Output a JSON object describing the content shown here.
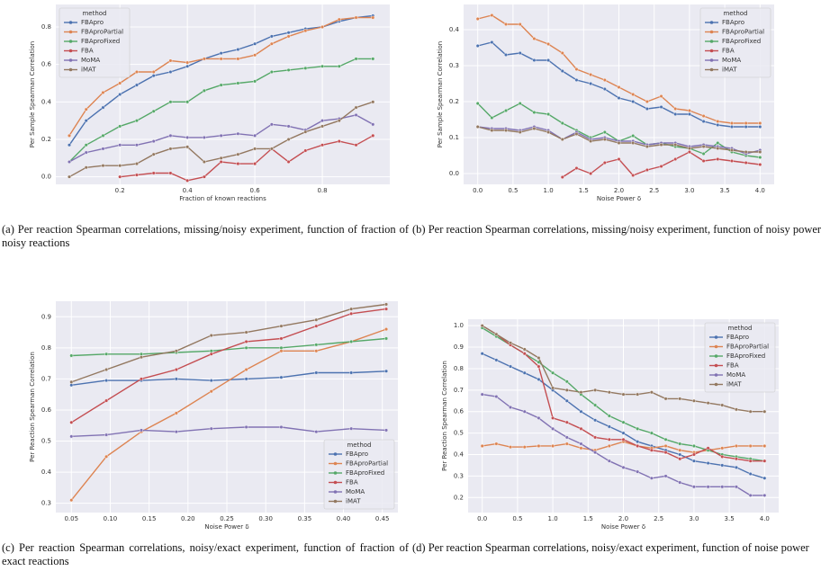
{
  "chart_data": [
    {
      "type": "line",
      "caption": "(a) Per reaction Spearman correlations, missing/noisy experiment, function of fraction of noisy reactions",
      "xlabel": "Fraction of known reactions",
      "ylabel": "Per Sample Spearman Correlation",
      "legend": "upper left",
      "legend_title": "method",
      "grid": true,
      "xlim": [
        0.01,
        1.0
      ],
      "ylim": [
        -0.04,
        0.92
      ],
      "xticks": [
        0.2,
        0.4,
        0.6,
        0.8
      ],
      "yticks": [
        {
          "value": 0,
          "label": "0.0"
        },
        0.2,
        0.4,
        0.6,
        0.8
      ],
      "x": [
        0.05,
        0.1,
        0.15,
        0.2,
        0.25,
        0.3,
        0.35,
        0.4,
        0.45,
        0.5,
        0.55,
        0.6,
        0.65,
        0.7,
        0.75,
        0.8,
        0.85,
        0.9,
        0.95
      ],
      "series": [
        {
          "name": "FBApro",
          "color": "#4c72b0",
          "values": [
            0.17,
            0.3,
            0.37,
            0.44,
            0.49,
            0.54,
            0.56,
            0.59,
            0.63,
            0.66,
            0.68,
            0.71,
            0.75,
            0.77,
            0.79,
            0.8,
            0.83,
            0.85,
            0.86
          ]
        },
        {
          "name": "FBAproPartial",
          "color": "#dd8452",
          "values": [
            0.22,
            0.36,
            0.45,
            0.5,
            0.56,
            0.56,
            0.62,
            0.61,
            0.63,
            0.63,
            0.63,
            0.65,
            0.71,
            0.75,
            0.78,
            0.8,
            0.84,
            0.85,
            0.85
          ]
        },
        {
          "name": "FBAproFixed",
          "color": "#55a868",
          "values": [
            0.08,
            0.17,
            0.22,
            0.27,
            0.3,
            0.35,
            0.4,
            0.4,
            0.46,
            0.49,
            0.5,
            0.51,
            0.56,
            0.57,
            0.58,
            0.59,
            0.59,
            0.63,
            0.63
          ]
        },
        {
          "name": "FBA",
          "color": "#c44e52",
          "values": [
            null,
            null,
            null,
            0.0,
            0.01,
            0.02,
            0.02,
            -0.02,
            0.0,
            0.08,
            0.07,
            0.07,
            0.15,
            0.08,
            0.14,
            0.17,
            0.19,
            0.17,
            0.22
          ]
        },
        {
          "name": "MoMA",
          "color": "#8172b3",
          "values": [
            0.08,
            0.13,
            0.15,
            0.17,
            0.17,
            0.19,
            0.22,
            0.21,
            0.21,
            0.22,
            0.23,
            0.22,
            0.28,
            0.27,
            0.25,
            0.3,
            0.31,
            0.33,
            0.28
          ]
        },
        {
          "name": "iMAT",
          "color": "#937860",
          "values": [
            0.0,
            0.05,
            0.06,
            0.06,
            0.07,
            0.12,
            0.15,
            0.16,
            0.08,
            0.1,
            0.12,
            0.15,
            0.15,
            0.2,
            0.24,
            0.27,
            0.3,
            0.37,
            0.4
          ]
        }
      ]
    },
    {
      "type": "line",
      "caption": "(b) Per reaction Spearman correlations, missing/noisy experiment, function of noisy power",
      "xlabel": "Noise Power δ",
      "ylabel": "Per Sample Spearman Correlation",
      "legend": "upper right",
      "legend_title": "method",
      "grid": true,
      "xlim": [
        -0.2,
        4.2
      ],
      "ylim": [
        -0.03,
        0.47
      ],
      "xticks": [
        {
          "value": 0,
          "label": "0.0"
        },
        0.5,
        {
          "value": 1,
          "label": "1.0"
        },
        1.5,
        {
          "value": 2,
          "label": "2.0"
        },
        2.5,
        {
          "value": 3,
          "label": "3.0"
        },
        3.5,
        {
          "value": 4,
          "label": "4.0"
        }
      ],
      "yticks": [
        {
          "value": 0,
          "label": "0.0"
        },
        0.1,
        0.2,
        0.3,
        0.4
      ],
      "x": [
        0,
        0.2,
        0.4,
        0.6,
        0.8,
        1.0,
        1.2,
        1.4,
        1.6,
        1.8,
        2.0,
        2.2,
        2.4,
        2.6,
        2.8,
        3.0,
        3.2,
        3.4,
        3.6,
        3.8,
        4.0
      ],
      "series": [
        {
          "name": "FBApro",
          "color": "#4c72b0",
          "values": [
            0.355,
            0.365,
            0.33,
            0.335,
            0.315,
            0.315,
            0.285,
            0.26,
            0.25,
            0.235,
            0.21,
            0.2,
            0.18,
            0.185,
            0.165,
            0.165,
            0.145,
            0.135,
            0.13,
            0.13,
            0.13
          ]
        },
        {
          "name": "FBAproPartial",
          "color": "#dd8452",
          "values": [
            0.43,
            0.44,
            0.415,
            0.415,
            0.375,
            0.36,
            0.335,
            0.29,
            0.275,
            0.26,
            0.24,
            0.22,
            0.2,
            0.215,
            0.18,
            0.175,
            0.16,
            0.145,
            0.14,
            0.14,
            0.14
          ]
        },
        {
          "name": "FBAproFixed",
          "color": "#55a868",
          "values": [
            0.195,
            0.155,
            0.175,
            0.195,
            0.17,
            0.165,
            0.14,
            0.12,
            0.1,
            0.115,
            0.09,
            0.105,
            0.08,
            0.085,
            0.075,
            0.07,
            0.055,
            0.085,
            0.06,
            0.05,
            0.045
          ]
        },
        {
          "name": "FBA",
          "color": "#c44e52",
          "values": [
            null,
            null,
            null,
            null,
            null,
            null,
            -0.01,
            0.015,
            0.0,
            0.03,
            0.04,
            -0.005,
            0.01,
            0.02,
            0.04,
            0.06,
            0.035,
            0.04,
            0.035,
            0.03,
            0.025
          ]
        },
        {
          "name": "MoMA",
          "color": "#8172b3",
          "values": [
            0.13,
            0.125,
            0.125,
            0.12,
            0.13,
            0.12,
            0.095,
            0.115,
            0.095,
            0.1,
            0.09,
            0.09,
            0.08,
            0.085,
            0.085,
            0.075,
            0.08,
            0.075,
            0.07,
            0.055,
            0.065
          ]
        },
        {
          "name": "iMAT",
          "color": "#937860",
          "values": [
            0.13,
            0.12,
            0.12,
            0.115,
            0.125,
            0.115,
            0.095,
            0.11,
            0.09,
            0.095,
            0.085,
            0.085,
            0.075,
            0.08,
            0.08,
            0.07,
            0.075,
            0.07,
            0.065,
            0.06,
            0.06
          ]
        }
      ]
    },
    {
      "type": "line",
      "caption": "(c) Per reaction Spearman correlations, noisy/exact experiment, function of fraction of exact reactions",
      "xlabel": "Noise Power δ",
      "ylabel": "Per Reaction Spearman Correlation",
      "legend": "lower right",
      "legend_title": "method",
      "grid": true,
      "xlim": [
        0.03,
        0.47
      ],
      "ylim": [
        0.27,
        0.95
      ],
      "xticks": [
        0.05,
        {
          "value": 0.1,
          "label": "0.10"
        },
        0.15,
        {
          "value": 0.2,
          "label": "0.20"
        },
        0.25,
        {
          "value": 0.3,
          "label": "0.30"
        },
        0.35,
        {
          "value": 0.4,
          "label": "0.40"
        },
        0.45
      ],
      "yticks": [
        0.3,
        0.4,
        0.5,
        0.6,
        0.7,
        0.8,
        0.9
      ],
      "x": [
        0.05,
        0.095,
        0.14,
        0.185,
        0.23,
        0.275,
        0.32,
        0.365,
        0.41,
        0.455
      ],
      "series": [
        {
          "name": "FBApro",
          "color": "#4c72b0",
          "values": [
            0.68,
            0.695,
            0.695,
            0.7,
            0.695,
            0.7,
            0.705,
            0.72,
            0.72,
            0.725
          ]
        },
        {
          "name": "FBAproPartial",
          "color": "#dd8452",
          "values": [
            0.31,
            0.45,
            0.53,
            0.59,
            0.66,
            0.73,
            0.79,
            0.79,
            0.82,
            0.86
          ]
        },
        {
          "name": "FBAproFixed",
          "color": "#55a868",
          "values": [
            0.775,
            0.78,
            0.78,
            0.785,
            0.79,
            0.8,
            0.8,
            0.81,
            0.82,
            0.83
          ]
        },
        {
          "name": "FBA",
          "color": "#c44e52",
          "values": [
            0.56,
            0.63,
            0.7,
            0.73,
            0.78,
            0.82,
            0.83,
            0.87,
            0.91,
            0.925
          ]
        },
        {
          "name": "MoMA",
          "color": "#8172b3",
          "values": [
            0.515,
            0.52,
            0.535,
            0.53,
            0.54,
            0.545,
            0.545,
            0.53,
            0.54,
            0.535
          ]
        },
        {
          "name": "iMAT",
          "color": "#937860",
          "values": [
            0.69,
            0.73,
            0.77,
            0.79,
            0.84,
            0.85,
            0.87,
            0.89,
            0.925,
            0.94
          ]
        }
      ]
    },
    {
      "type": "line",
      "caption": "(d) Per reaction Spearman correlations, noisy/exact experiment, function of noise power",
      "xlabel": "Noise Power δ",
      "ylabel": "Per Reaction Spearman Correlation",
      "legend": "upper right",
      "legend_title": "method",
      "grid": true,
      "xlim": [
        -0.2,
        4.2
      ],
      "ylim": [
        0.13,
        1.03
      ],
      "xticks": [
        {
          "value": 0,
          "label": "0.0"
        },
        0.5,
        {
          "value": 1,
          "label": "1.0"
        },
        1.5,
        {
          "value": 2,
          "label": "2.0"
        },
        2.5,
        {
          "value": 3,
          "label": "3.0"
        },
        3.5,
        {
          "value": 4,
          "label": "4.0"
        }
      ],
      "yticks": [
        0.2,
        0.3,
        0.4,
        0.5,
        0.6,
        0.7,
        0.8,
        0.9,
        {
          "value": 1,
          "label": "1.0"
        }
      ],
      "x": [
        0,
        0.2,
        0.4,
        0.6,
        0.8,
        1.0,
        1.2,
        1.4,
        1.6,
        1.8,
        2.0,
        2.2,
        2.4,
        2.6,
        2.8,
        3.0,
        3.2,
        3.4,
        3.6,
        3.8,
        4.0
      ],
      "series": [
        {
          "name": "FBApro",
          "color": "#4c72b0",
          "values": [
            0.87,
            0.84,
            0.81,
            0.78,
            0.75,
            0.7,
            0.65,
            0.6,
            0.56,
            0.53,
            0.5,
            0.46,
            0.44,
            0.42,
            0.4,
            0.37,
            0.36,
            0.35,
            0.34,
            0.31,
            0.29
          ]
        },
        {
          "name": "FBAproPartial",
          "color": "#dd8452",
          "values": [
            0.44,
            0.45,
            0.435,
            0.435,
            0.44,
            0.44,
            0.45,
            0.43,
            0.42,
            0.44,
            0.46,
            0.44,
            0.43,
            0.44,
            0.42,
            0.41,
            0.42,
            0.43,
            0.44,
            0.44,
            0.44
          ]
        },
        {
          "name": "FBAproFixed",
          "color": "#55a868",
          "values": [
            0.99,
            0.95,
            0.91,
            0.87,
            0.83,
            0.78,
            0.74,
            0.68,
            0.63,
            0.58,
            0.55,
            0.52,
            0.5,
            0.47,
            0.45,
            0.44,
            0.42,
            0.4,
            0.39,
            0.38,
            0.37
          ]
        },
        {
          "name": "FBA",
          "color": "#c44e52",
          "values": [
            1.0,
            0.96,
            0.91,
            0.87,
            0.81,
            0.57,
            0.55,
            0.52,
            0.48,
            0.47,
            0.47,
            0.44,
            0.42,
            0.41,
            0.38,
            0.4,
            0.43,
            0.39,
            0.38,
            0.37,
            0.37
          ]
        },
        {
          "name": "MoMA",
          "color": "#8172b3",
          "values": [
            0.68,
            0.67,
            0.62,
            0.6,
            0.57,
            0.52,
            0.48,
            0.45,
            0.41,
            0.37,
            0.34,
            0.32,
            0.29,
            0.3,
            0.27,
            0.25,
            0.25,
            0.25,
            0.25,
            0.21,
            0.21
          ]
        },
        {
          "name": "iMAT",
          "color": "#937860",
          "values": [
            1.0,
            0.96,
            0.92,
            0.89,
            0.85,
            0.71,
            0.7,
            0.69,
            0.7,
            0.69,
            0.68,
            0.68,
            0.69,
            0.66,
            0.66,
            0.65,
            0.64,
            0.63,
            0.61,
            0.6,
            0.6
          ]
        }
      ]
    }
  ]
}
